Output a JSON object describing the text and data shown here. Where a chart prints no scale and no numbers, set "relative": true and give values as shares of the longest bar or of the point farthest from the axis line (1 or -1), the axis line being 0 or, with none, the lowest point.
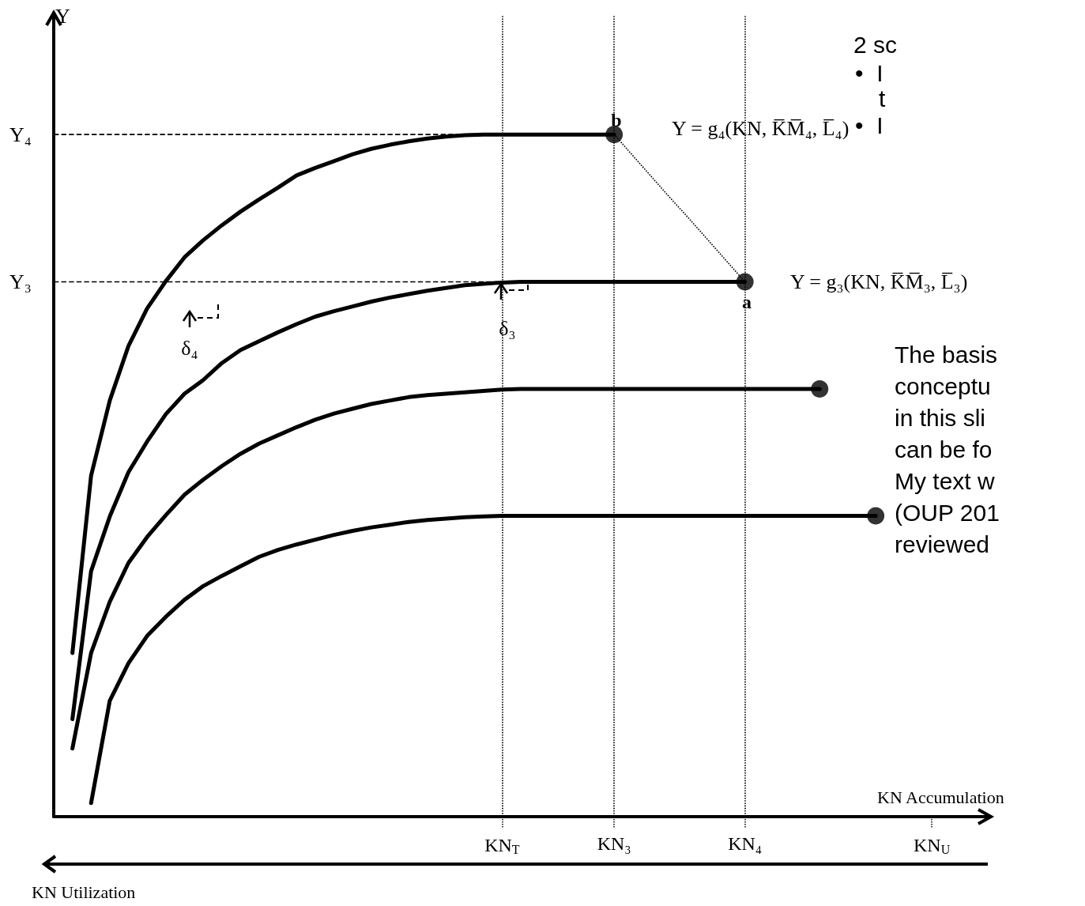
{
  "chart_data": {
    "type": "line",
    "relative": true,
    "xlabel": "KN Accumulation",
    "categories": [
      null,
      null,
      null,
      null,
      null,
      null,
      null,
      null,
      null,
      null,
      null,
      null,
      null,
      null,
      null,
      null,
      null,
      null,
      null,
      null,
      null,
      null,
      null,
      null,
      "KN$_{T}$",
      null,
      null,
      null,
      null,
      null,
      "KN₃",
      null,
      null,
      null,
      null,
      null,
      null,
      "KN₄",
      null,
      null,
      null,
      null,
      null,
      null,
      null,
      null,
      null,
      "KN$_{U}$",
      null,
      null,
      null
    ],
    "marker": "none",
    "line_style": "solid",
    "series": [
      {
        "color": "#000000",
        "values": [
          null,
          0.24,
          0.5,
          0.61,
          0.69,
          0.745,
          0.785,
          0.82,
          0.845,
          0.867,
          0.887,
          0.905,
          0.922,
          0.94,
          0.951,
          0.961,
          0.971,
          0.979,
          0.985,
          0.99,
          0.994,
          0.997,
          0.999,
          1,
          1,
          1,
          1,
          1,
          1,
          1,
          1,
          null,
          null,
          null,
          null,
          null,
          null,
          null,
          null,
          null,
          null,
          null,
          null,
          null,
          null,
          null,
          null,
          null,
          null,
          null,
          null
        ]
      },
      {
        "color": "#000000",
        "values": [
          null,
          0.143,
          0.36,
          0.44,
          0.505,
          0.55,
          0.59,
          0.62,
          0.64,
          0.665,
          0.684,
          0.697,
          0.71,
          0.722,
          0.733,
          0.741,
          0.748,
          0.755,
          0.761,
          0.766,
          0.771,
          0.775,
          0.779,
          0.781,
          0.783,
          0.784,
          0.784,
          0.784,
          0.784,
          0.784,
          0.784,
          0.784,
          0.784,
          0.784,
          0.784,
          0.784,
          0.784,
          0.784,
          null,
          null,
          null,
          null,
          null,
          null,
          null,
          null,
          null,
          null,
          null,
          null,
          null
        ]
      },
      {
        "color": "#000000",
        "values": [
          null,
          0.1,
          0.24,
          0.315,
          0.372,
          0.41,
          0.442,
          0.472,
          0.494,
          0.514,
          0.532,
          0.547,
          0.559,
          0.571,
          0.582,
          0.591,
          0.598,
          0.605,
          0.61,
          0.615,
          0.618,
          0.62,
          0.622,
          0.624,
          0.626,
          0.627,
          0.627,
          0.627,
          0.627,
          0.627,
          0.627,
          0.627,
          0.627,
          0.627,
          0.627,
          0.627,
          0.627,
          0.627,
          0.627,
          0.627,
          0.627,
          0.627,
          null,
          null,
          null,
          null,
          null,
          null,
          null,
          null,
          null
        ]
      },
      {
        "color": "#000000",
        "values": [
          null,
          null,
          0.02,
          0.17,
          0.225,
          0.265,
          0.293,
          0.318,
          0.338,
          0.353,
          0.367,
          0.381,
          0.391,
          0.399,
          0.406,
          0.413,
          0.419,
          0.424,
          0.428,
          0.432,
          0.435,
          0.437,
          0.439,
          0.44,
          0.441,
          0.441,
          0.441,
          0.441,
          0.441,
          0.441,
          0.441,
          0.441,
          0.441,
          0.441,
          0.441,
          0.441,
          0.441,
          0.441,
          0.441,
          0.441,
          0.441,
          0.441,
          0.441,
          0.441,
          0.441,
          null,
          null,
          null,
          null,
          null,
          null
        ]
      },
      {
        "type": "scatter",
        "marker": "circle",
        "color": "#000000",
        "values": [
          null,
          null,
          null,
          null,
          null,
          null,
          null,
          null,
          null,
          null,
          null,
          null,
          null,
          null,
          null,
          null,
          null,
          null,
          null,
          null,
          null,
          null,
          null,
          null,
          null,
          null,
          null,
          null,
          null,
          null,
          1,
          null,
          null,
          null,
          null,
          null,
          null,
          0.784,
          null,
          null,
          null,
          0.627,
          null,
          null,
          0.441,
          null,
          null,
          null,
          null,
          null,
          null
        ]
      },
      {
        "line_style": "dashed",
        "color": "#000000",
        "values": [
          1,
          1,
          1,
          1,
          1,
          1,
          1,
          1,
          1,
          1,
          1,
          1,
          1,
          1,
          1,
          1,
          1,
          1,
          1,
          1,
          1,
          1,
          1,
          1,
          null,
          null,
          null,
          null,
          null,
          null,
          null,
          null,
          null,
          null,
          null,
          null,
          null,
          null,
          null,
          null,
          null,
          null,
          null,
          null,
          null,
          null,
          null,
          null,
          null,
          null,
          null
        ]
      },
      {
        "line_style": "dashed",
        "color": "#000000",
        "values": [
          0.784,
          0.784,
          0.784,
          0.784,
          0.784,
          0.784,
          0.784,
          0.784,
          0.784,
          0.784,
          0.784,
          0.784,
          0.784,
          0.784,
          0.784,
          0.784,
          0.784,
          0.784,
          0.784,
          0.784,
          0.784,
          0.784,
          0.784,
          0.784,
          0.784,
          0.784,
          0.784,
          0.784,
          null,
          null,
          null,
          null,
          null,
          null,
          null,
          null,
          null,
          null,
          null,
          null,
          null,
          null,
          null,
          null,
          null,
          null,
          null,
          null,
          null,
          null,
          null
        ]
      },
      {
        "line_style": "dotted",
        "color": "#000000",
        "values": [
          null,
          null,
          null,
          null,
          null,
          null,
          null,
          null,
          null,
          null,
          null,
          null,
          null,
          null,
          null,
          null,
          null,
          null,
          null,
          null,
          null,
          null,
          null,
          null,
          null,
          null,
          null,
          null,
          null,
          null,
          1,
          0.969,
          0.938,
          0.907,
          0.877,
          0.846,
          0.815,
          0.784,
          null,
          null,
          null,
          null,
          null,
          null,
          null,
          null,
          null,
          null,
          null,
          null,
          null
        ]
      }
    ],
    "ref_lines": [
      {
        "axis": "x",
        "value": "KN$_{T}$",
        "line_style": "dotted",
        "color": "#000000"
      },
      {
        "axis": "x",
        "value": "KN₃",
        "line_style": "dotted",
        "color": "#000000"
      },
      {
        "axis": "x",
        "value": "KN₄",
        "line_style": "dotted",
        "color": "#000000"
      }
    ],
    "annotations": [
      "Y",
      "Y₄",
      "Y₃",
      "b",
      "a",
      "Y = g₄(KN, K̅M̅₄, L̅₄)",
      "Y = g₃(KN, K̅M̅₃, L̅₃)",
      "δ₄",
      "δ₃",
      "KN Utilization",
      "2 sc",
      "•  I",
      "t",
      "•  I",
      "The basis",
      "conceptu",
      "in this sli",
      "can be fo",
      "My text w",
      "(OUP 201",
      "reviewed"
    ]
  }
}
